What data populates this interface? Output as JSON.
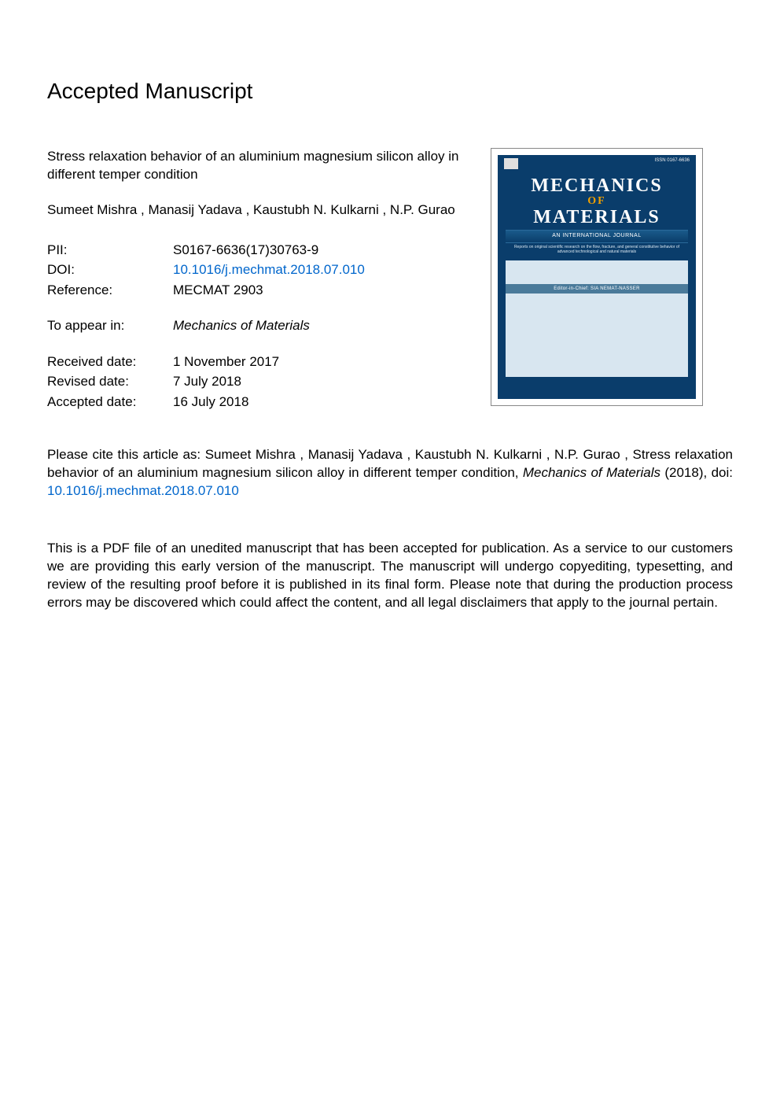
{
  "heading": "Accepted Manuscript",
  "article": {
    "title": "Stress relaxation behavior of an aluminium magnesium silicon alloy in different temper condition",
    "authors": "Sumeet Mishra ,  Manasij Yadava ,  Kaustubh N. Kulkarni , N.P. Gurao"
  },
  "meta": {
    "pii_label": "PII:",
    "pii": "S0167-6636(17)30763-9",
    "doi_label": "DOI:",
    "doi": "10.1016/j.mechmat.2018.07.010",
    "ref_label": "Reference:",
    "ref": "MECMAT 2903",
    "appear_label": "To appear in:",
    "appear": "Mechanics of Materials",
    "received_label": "Received date:",
    "received": "1 November 2017",
    "revised_label": "Revised date:",
    "revised": "7 July 2018",
    "accepted_label": "Accepted date:",
    "accepted": "16 July 2018"
  },
  "cover": {
    "issn": "ISSN 0167-6636",
    "title1": "MECHANICS",
    "title2": "OF",
    "title3": "MATERIALS",
    "subtitle": "AN INTERNATIONAL JOURNAL",
    "tagline": "Reports on original scientific research on the flow, fracture, and general constitutive behavior of advanced technological and natural materials",
    "editor": "Editor-in-Chief: SIA NEMAT-NASSER",
    "colors": {
      "bg": "#0a3d6b",
      "body": "#d8e6f0",
      "strip": "#4a7a9a",
      "accent": "#f0a000"
    }
  },
  "cite": {
    "prefix": "Please cite this article as:  Sumeet Mishra ,  Manasij Yadava ,  Kaustubh N. Kulkarni ,  N.P. Gurao , Stress relaxation behavior of an aluminium magnesium silicon alloy in different temper condition, ",
    "journal": "Mechanics of Materials",
    "year": " (2018), doi: ",
    "doi": "10.1016/j.mechmat.2018.07.010"
  },
  "disclaimer": "This is a PDF file of an unedited manuscript that has been accepted for publication. As a service to our customers we are providing this early version of the manuscript. The manuscript will undergo copyediting, typesetting, and review of the resulting proof before it is published in its final form. Please note that during the production process errors may be discovered which could affect the content, and all legal disclaimers that apply to the journal pertain."
}
